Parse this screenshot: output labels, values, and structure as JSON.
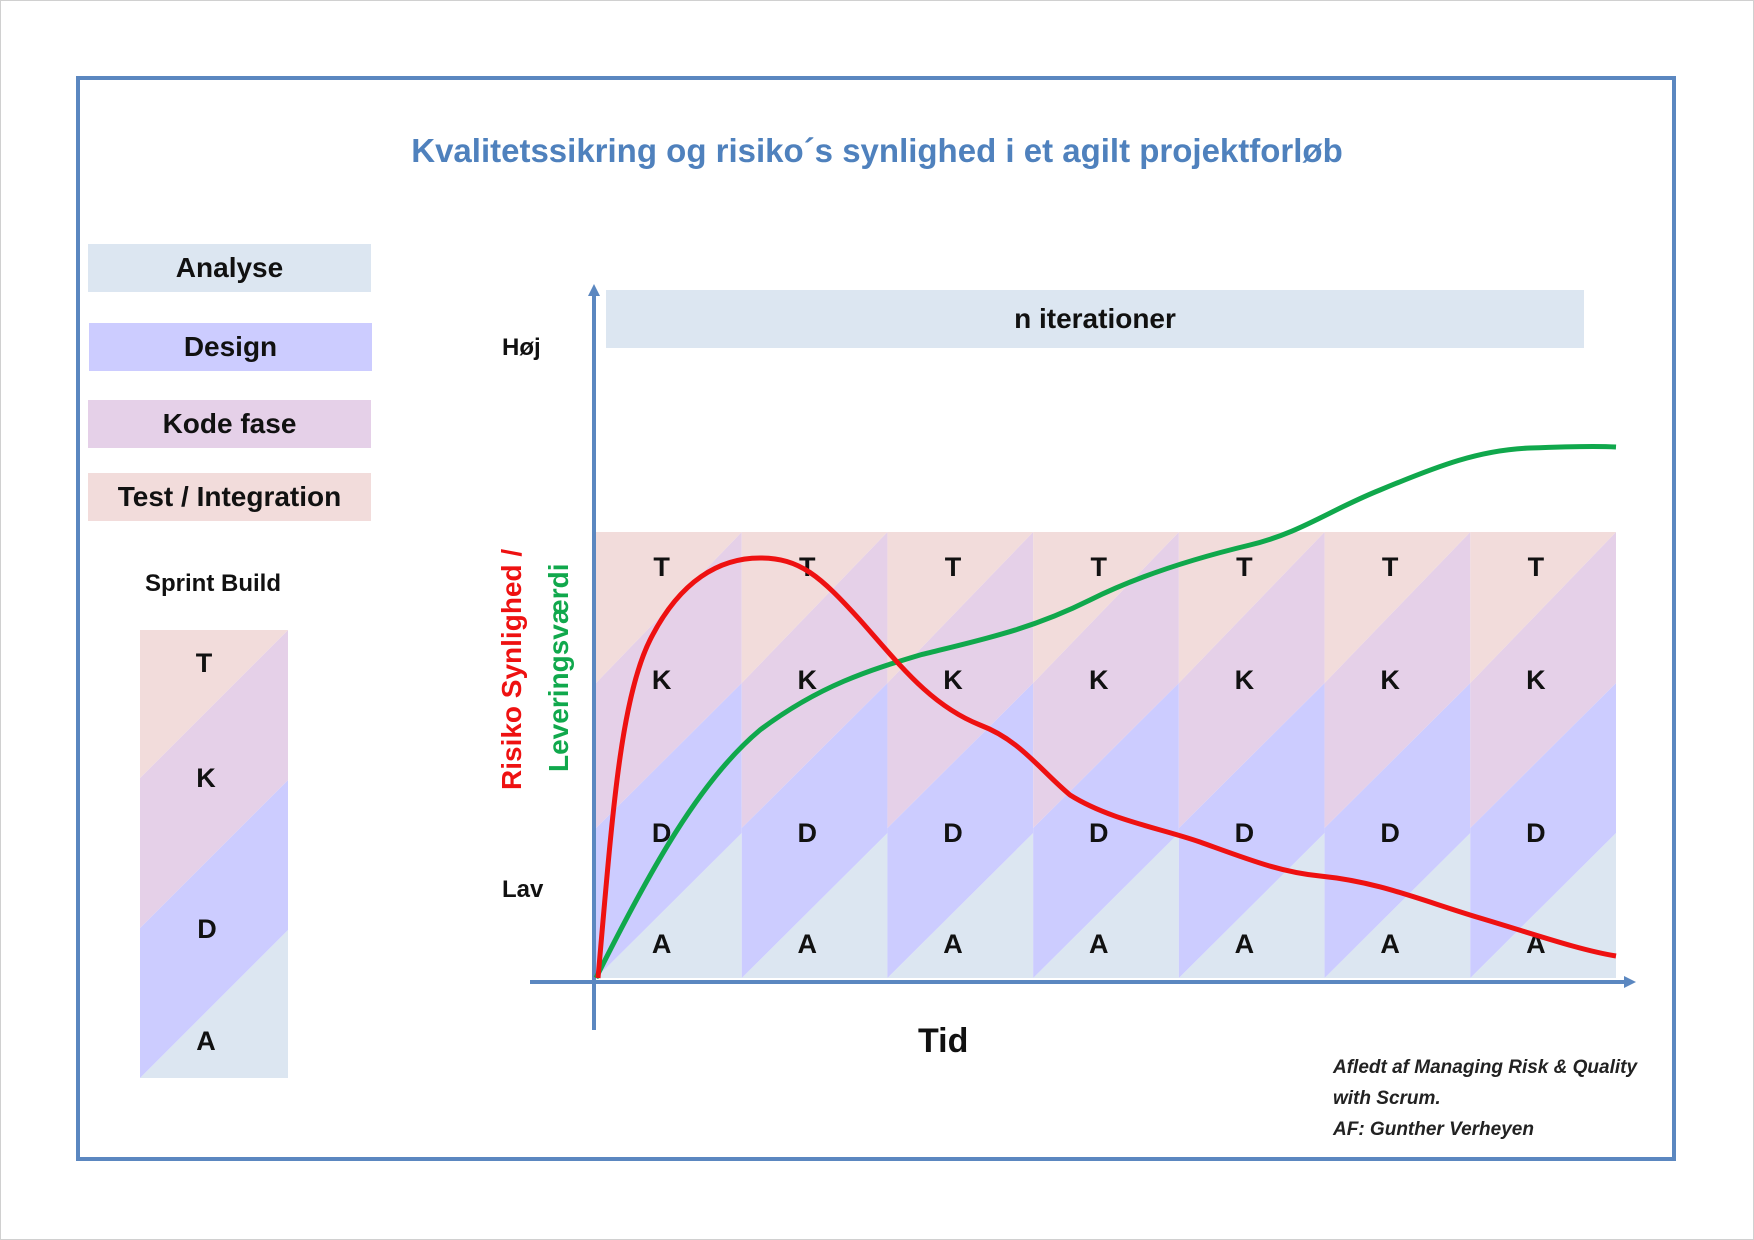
{
  "title": "Kvalitetssikring og risiko´s synlighed i et agilt projektforløb",
  "legend": {
    "analyse": "Analyse",
    "design": "Design",
    "kode": "Kode fase",
    "test": "Test / Integration"
  },
  "sprint_build": {
    "label": "Sprint Build",
    "phases": [
      "T",
      "K",
      "D",
      "A"
    ]
  },
  "axes": {
    "y_high": "Høj",
    "y_low": "Lav",
    "x_label": "Tid",
    "y_label_risk": "Risiko Synlighed /",
    "y_label_value": "Leveringsværdi"
  },
  "banner": "n iterationer",
  "sprints": {
    "count": 7,
    "phases_top_to_bottom": [
      "T",
      "K",
      "D",
      "A"
    ]
  },
  "colors": {
    "analyse": "#dce6f1",
    "design": "#ccccff",
    "kode": "#e5d0e8",
    "test": "#f2dcdb",
    "risk_curve": "#ee1111",
    "value_curve": "#10a84c",
    "axis": "#5b87c0",
    "title": "#4f81bd"
  },
  "credit": {
    "line1": "Afledt af Managing Risk & Quality",
    "line2": "with Scrum.",
    "line3": "AF: Gunther Verheyen"
  }
}
